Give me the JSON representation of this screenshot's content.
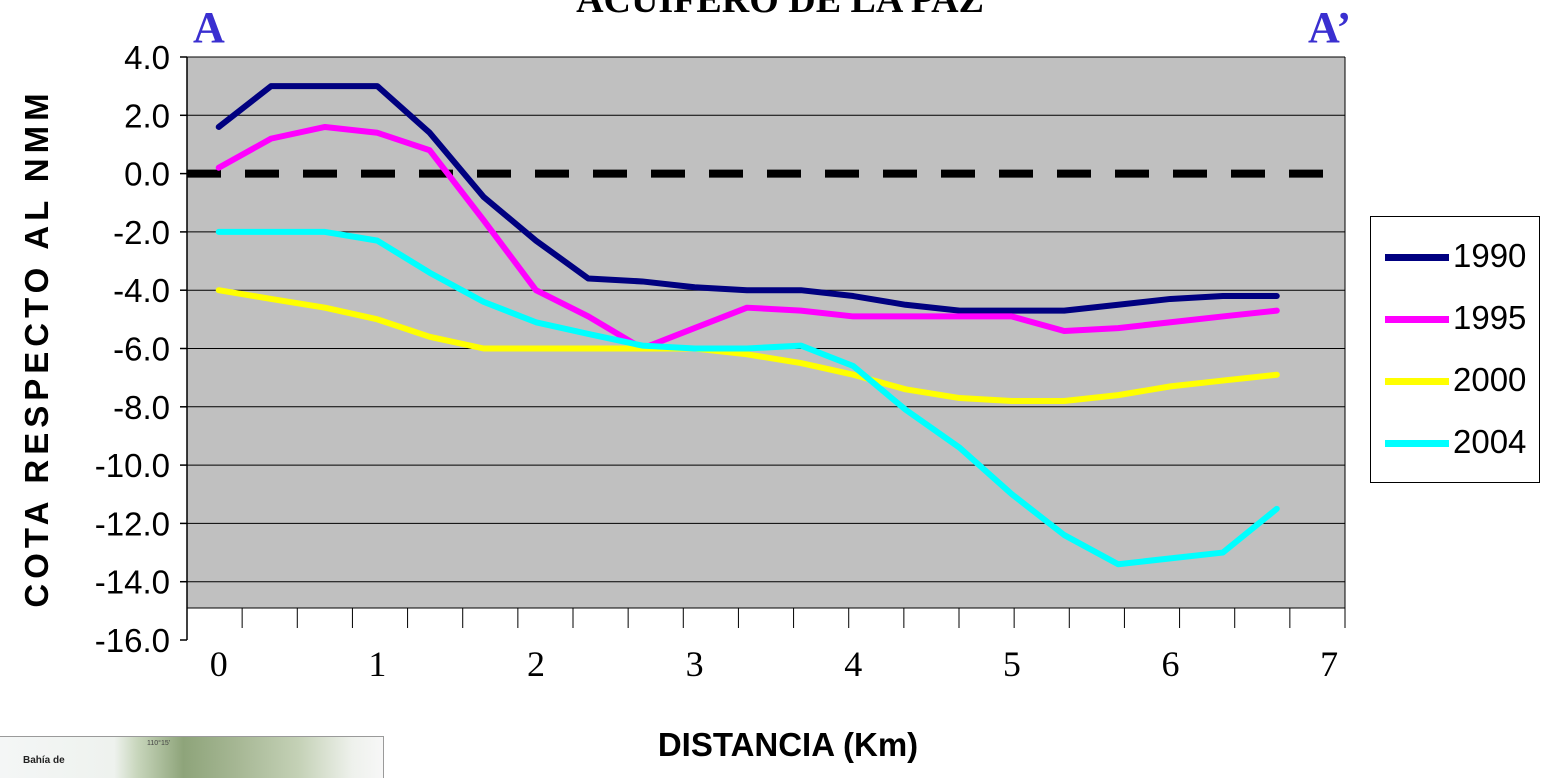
{
  "colors": {
    "plot_background": "#c0c0c0",
    "zero_line": "#000000",
    "marker_text": "#3a2fd0"
  },
  "markers": {
    "start": "A",
    "end": "A’"
  },
  "map_inset": {
    "label": "Bahía de",
    "coordinate": "110°15'"
  },
  "chart_data": {
    "type": "line",
    "title": "ACUIFERO DE LA PAZ",
    "xlabel": "DISTANCIA (Km)",
    "ylabel": "COTA RESPECTO AL NMM",
    "xlim": [
      -0.2,
      7.1
    ],
    "ylim": [
      -16.0,
      4.0
    ],
    "x_ticks": [
      "0",
      "1",
      "2",
      "3",
      "4",
      "5",
      "6",
      "7"
    ],
    "y_ticks": [
      "4.0",
      "2.0",
      "0.0",
      "-2.0",
      "-4.0",
      "-6.0",
      "-8.0",
      "-10.0",
      "-12.0",
      "-14.0",
      "-16.0"
    ],
    "grid": "horizontal",
    "reference_line": {
      "y": 0.0,
      "style": "dashed"
    },
    "legend_position": "right",
    "x": [
      0,
      0.33,
      0.67,
      1.0,
      1.33,
      1.67,
      2.0,
      2.33,
      2.67,
      3.0,
      3.33,
      3.67,
      4.0,
      4.33,
      4.67,
      5.0,
      5.33,
      5.67,
      6.0,
      6.33,
      6.67
    ],
    "series": [
      {
        "name": "1990",
        "color": "#000080",
        "values": [
          1.6,
          3.0,
          3.0,
          3.0,
          1.4,
          -0.8,
          -2.3,
          -3.6,
          -3.7,
          -3.9,
          -4.0,
          -4.0,
          -4.2,
          -4.5,
          -4.7,
          -4.7,
          -4.7,
          -4.5,
          -4.3,
          -4.2,
          -4.2
        ]
      },
      {
        "name": "1995",
        "color": "#ff00ff",
        "values": [
          0.2,
          1.2,
          1.6,
          1.4,
          0.8,
          -1.6,
          -4.0,
          -4.9,
          -6.0,
          -5.3,
          -4.6,
          -4.7,
          -4.9,
          -4.9,
          -4.9,
          -4.9,
          -5.4,
          -5.3,
          -5.1,
          -4.9,
          -4.7
        ]
      },
      {
        "name": "2000",
        "color": "#ffff00",
        "values": [
          -4.0,
          -4.3,
          -4.6,
          -5.0,
          -5.6,
          -6.0,
          -6.0,
          -6.0,
          -6.0,
          -6.0,
          -6.2,
          -6.5,
          -6.9,
          -7.4,
          -7.7,
          -7.8,
          -7.8,
          -7.6,
          -7.3,
          -7.1,
          -6.9
        ]
      },
      {
        "name": "2004",
        "color": "#00ffff",
        "values": [
          -2.0,
          -2.0,
          -2.0,
          -2.3,
          -3.4,
          -4.4,
          -5.1,
          -5.5,
          -5.9,
          -6.0,
          -6.0,
          -5.9,
          -6.6,
          -8.1,
          -9.4,
          -11.0,
          -12.4,
          -13.4,
          -13.2,
          -13.0,
          -11.5
        ]
      }
    ]
  }
}
